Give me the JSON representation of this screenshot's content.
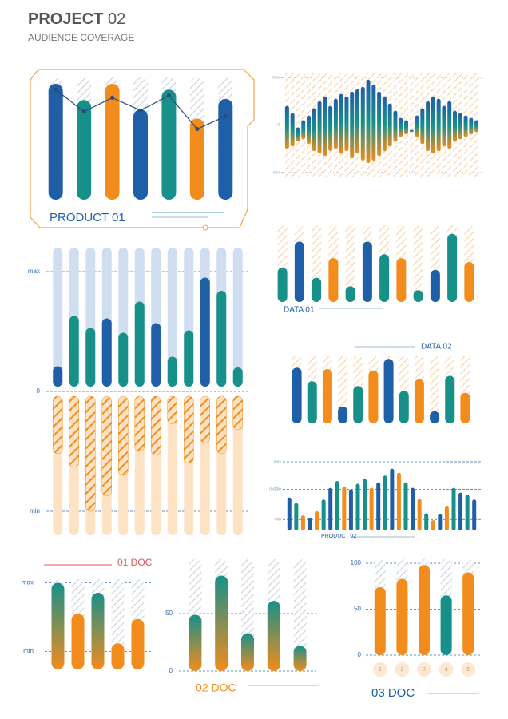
{
  "header": {
    "title": "PROJECT",
    "title_number": "02",
    "subtitle": "AUDIENCE COVERAGE"
  },
  "chart_data": [
    {
      "type": "bar",
      "title": "PRODUCT 01",
      "ylim": [
        0,
        100
      ],
      "values": [
        100,
        86,
        100,
        78,
        95,
        70,
        87
      ],
      "colors": [
        "#1f5fa8",
        "#18908a",
        "#f28c1c",
        "#1f5fa8",
        "#18908a",
        "#f28c1c",
        "#1f5fa8"
      ],
      "line": {
        "values": [
          95,
          76,
          88,
          77,
          90,
          61,
          72
        ],
        "color": "#2b4a7a"
      }
    },
    {
      "type": "range_bar",
      "ylim": [
        -110,
        110
      ],
      "yticks": [
        {
          "value": 100,
          "label": "max"
        },
        0,
        {
          "value": -100,
          "label": "min"
        }
      ],
      "high": [
        40,
        25,
        -5,
        10,
        20,
        35,
        50,
        60,
        40,
        55,
        65,
        60,
        70,
        75,
        80,
        95,
        85,
        70,
        60,
        45,
        30,
        15,
        10,
        -10,
        20,
        35,
        50,
        60,
        55,
        40,
        50,
        30,
        25,
        20,
        15,
        10
      ],
      "low": [
        -50,
        -45,
        -35,
        -30,
        -40,
        -55,
        -60,
        -65,
        -55,
        -50,
        -60,
        -55,
        -70,
        -60,
        -75,
        -80,
        -75,
        -65,
        -55,
        -45,
        -35,
        -25,
        -20,
        -15,
        -25,
        -40,
        -55,
        -60,
        -55,
        -45,
        -50,
        -35,
        -30,
        -25,
        -20,
        -15
      ],
      "color": [
        "#1f5fa8",
        "#18908a",
        "#f28c1c"
      ]
    },
    {
      "type": "diverging_bar",
      "ylim": [
        -120,
        120
      ],
      "yticks": [
        {
          "value": 100,
          "label": "max"
        },
        0,
        {
          "value": -100,
          "label": "min"
        }
      ],
      "values": [
        21,
        63,
        53,
        61,
        49,
        75,
        57,
        29,
        51,
        95,
        84,
        20
      ],
      "values_below": [
        -52,
        -63,
        -100,
        -87,
        -70,
        -50,
        -53,
        -27,
        -60,
        -43,
        -52,
        -32
      ],
      "colors": [
        "#1f5fa8",
        "#18908a",
        "#18908a",
        "#1f5fa8",
        "#18908a",
        "#18908a",
        "#1f5fa8",
        "#18908a",
        "#18908a",
        "#1f5fa8",
        "#18908a",
        "#18908a"
      ],
      "color_below": "#f28c1c"
    },
    {
      "type": "bar",
      "title": "DATA 01",
      "ylim": [
        0,
        100
      ],
      "values": [
        44,
        77,
        31,
        56,
        20,
        77,
        61,
        56,
        15,
        41,
        87,
        51
      ],
      "colors": [
        "#18908a",
        "#1f5fa8",
        "#18908a",
        "#f28c1c",
        "#18908a",
        "#1f5fa8",
        "#18908a",
        "#f28c1c",
        "#18908a",
        "#1f5fa8",
        "#18908a",
        "#f28c1c"
      ]
    },
    {
      "type": "bar",
      "title": "DATA 02",
      "ylim": [
        0,
        100
      ],
      "values": [
        82,
        62,
        80,
        25,
        55,
        78,
        95,
        48,
        65,
        18,
        70,
        45
      ],
      "colors": [
        "#1f5fa8",
        "#18908a",
        "#f28c1c",
        "#1f5fa8",
        "#18908a",
        "#f28c1c",
        "#1f5fa8",
        "#18908a",
        "#f28c1c",
        "#1f5fa8",
        "#18908a",
        "#f28c1c"
      ]
    },
    {
      "type": "bar",
      "title": "PRODUCT 02",
      "ylim": [
        0,
        100
      ],
      "yticks": [
        {
          "value": 100,
          "label": "max"
        },
        {
          "value": 60,
          "label": "middle"
        },
        {
          "value": 16,
          "label": "min"
        }
      ],
      "values": [
        48,
        40,
        22,
        18,
        28,
        45,
        62,
        72,
        64,
        60,
        68,
        75,
        62,
        70,
        80,
        90,
        84,
        70,
        62,
        46,
        25,
        15,
        24,
        35,
        62,
        55,
        52,
        45
      ],
      "colors": [
        "#1f5fa8",
        "#18908a",
        "#f28c1c",
        "#1f5fa8",
        "#f28c1c",
        "#18908a",
        "#1f5fa8",
        "#18908a",
        "#f28c1c",
        "#1f5fa8",
        "#18908a",
        "#18908a",
        "#f28c1c",
        "#1f5fa8",
        "#18908a",
        "#1f5fa8",
        "#f28c1c",
        "#18908a",
        "#1f5fa8",
        "#f28c1c",
        "#18908a",
        "#f28c1c",
        "#1f5fa8",
        "#f28c1c",
        "#18908a",
        "#1f5fa8",
        "#18908a",
        "#1f5fa8"
      ]
    },
    {
      "type": "bar",
      "title": "01 DOC",
      "ylim": [
        0,
        100
      ],
      "yticks": [
        {
          "value": 96,
          "label": "max"
        },
        {
          "value": 20,
          "label": "min"
        }
      ],
      "values": [
        96,
        62,
        85,
        29,
        56
      ],
      "colors": [
        [
          "#18908a",
          "#f28c1c"
        ],
        "#f28c1c",
        [
          "#18908a",
          "#f28c1c"
        ],
        "#f28c1c",
        "#f28c1c"
      ]
    },
    {
      "type": "bar",
      "title": "02 DOC",
      "ylim": [
        0,
        100
      ],
      "yticks": [
        50,
        0
      ],
      "values": [
        49,
        83,
        33,
        61,
        22
      ],
      "colors": [
        [
          "#18908a",
          "#f28c1c"
        ],
        [
          "#18908a",
          "#f28c1c"
        ],
        [
          "#18908a",
          "#f28c1c"
        ],
        [
          "#18908a",
          "#f28c1c"
        ],
        [
          "#18908a",
          "#f28c1c"
        ]
      ]
    },
    {
      "type": "bar",
      "title": "03 DOC",
      "ylim": [
        0,
        100
      ],
      "yticks": [
        100,
        50,
        0
      ],
      "categories": [
        "1",
        "2",
        "3",
        "4",
        "5"
      ],
      "values": [
        74,
        83,
        98,
        65,
        90
      ],
      "colors": [
        "#f28c1c",
        "#f28c1c",
        "#f28c1c",
        "#18908a",
        "#f28c1c"
      ]
    }
  ]
}
